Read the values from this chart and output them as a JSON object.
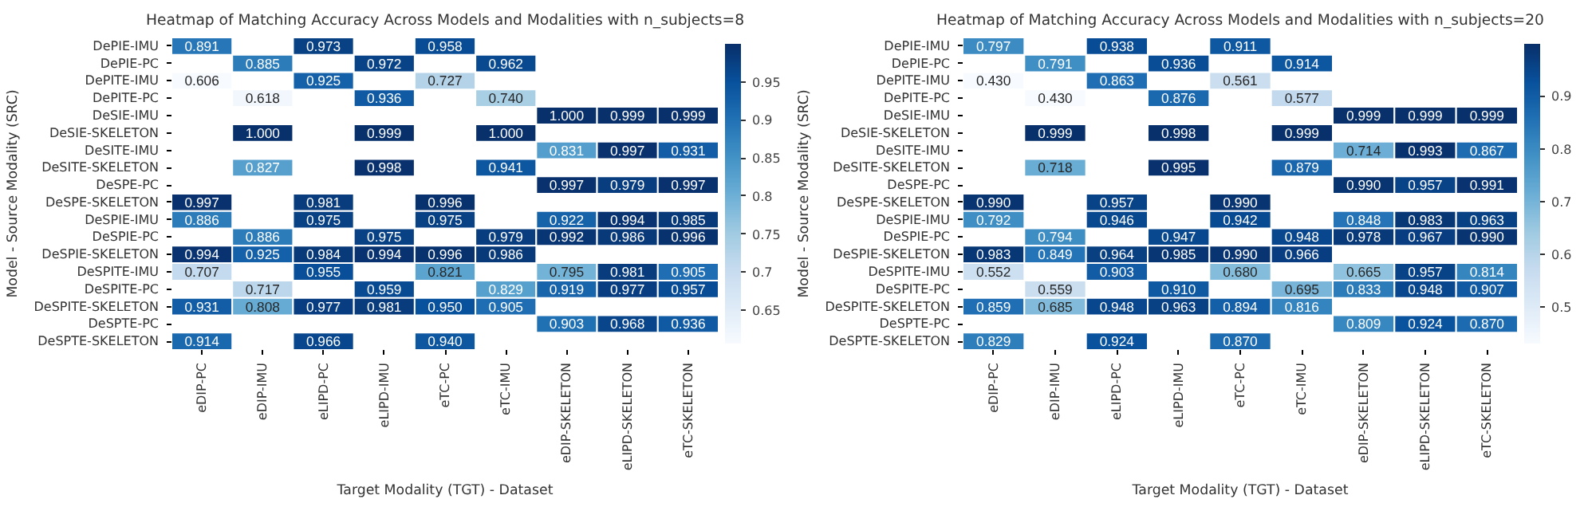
{
  "chart_data": [
    {
      "type": "heatmap",
      "title": "Heatmap of Matching Accuracy Across Models and Modalities with n_subjects=8",
      "xlabel": "Target Modality (TGT) - Dataset",
      "ylabel": "Model - Source Modality (SRC)",
      "categories": [
        "eDIP-PC",
        "eDIP-IMU",
        "eLIPD-PC",
        "eLIPD-IMU",
        "eTC-PC",
        "eTC-IMU",
        "eDIP-SKELETON",
        "eLIPD-SKELETON",
        "eTC-SKELETON"
      ],
      "y_categories": [
        "DePIE-IMU",
        "DePIE-PC",
        "DePITE-IMU",
        "DePITE-PC",
        "DeSIE-IMU",
        "DeSIE-SKELETON",
        "DeSITE-IMU",
        "DeSITE-SKELETON",
        "DeSPE-PC",
        "DeSPE-SKELETON",
        "DeSPIE-IMU",
        "DeSPIE-PC",
        "DeSPIE-SKELETON",
        "DeSPITE-IMU",
        "DeSPITE-PC",
        "DeSPITE-SKELETON",
        "DeSPTE-PC",
        "DeSPTE-SKELETON"
      ],
      "cells": [
        [
          0.891,
          null,
          0.973,
          null,
          0.958,
          null,
          null,
          null,
          null
        ],
        [
          null,
          0.885,
          null,
          0.972,
          null,
          0.962,
          null,
          null,
          null
        ],
        [
          0.606,
          null,
          0.925,
          null,
          0.727,
          null,
          null,
          null,
          null
        ],
        [
          null,
          0.618,
          null,
          0.936,
          null,
          0.74,
          null,
          null,
          null
        ],
        [
          null,
          null,
          null,
          null,
          null,
          null,
          1.0,
          0.999,
          0.999
        ],
        [
          null,
          1.0,
          null,
          0.999,
          null,
          1.0,
          null,
          null,
          null
        ],
        [
          null,
          null,
          null,
          null,
          null,
          null,
          0.831,
          0.997,
          0.931
        ],
        [
          null,
          0.827,
          null,
          0.998,
          null,
          0.941,
          null,
          null,
          null
        ],
        [
          null,
          null,
          null,
          null,
          null,
          null,
          0.997,
          0.979,
          0.997
        ],
        [
          0.997,
          null,
          0.981,
          null,
          0.996,
          null,
          null,
          null,
          null
        ],
        [
          0.886,
          null,
          0.975,
          null,
          0.975,
          null,
          0.922,
          0.994,
          0.985
        ],
        [
          null,
          0.886,
          null,
          0.975,
          null,
          0.979,
          0.992,
          0.986,
          0.996
        ],
        [
          0.994,
          0.925,
          0.984,
          0.994,
          0.996,
          0.986,
          null,
          null,
          null
        ],
        [
          0.707,
          null,
          0.955,
          null,
          0.821,
          null,
          0.795,
          0.981,
          0.905
        ],
        [
          null,
          0.717,
          null,
          0.959,
          null,
          0.829,
          0.919,
          0.977,
          0.957
        ],
        [
          0.931,
          0.808,
          0.977,
          0.981,
          0.95,
          0.905,
          null,
          null,
          null
        ],
        [
          null,
          null,
          null,
          null,
          null,
          null,
          0.903,
          0.968,
          0.936
        ],
        [
          0.914,
          null,
          0.966,
          null,
          0.94,
          null,
          null,
          null,
          null
        ]
      ],
      "cell_labels": [
        [
          "0.891",
          null,
          "0.973",
          null,
          "0.958",
          null,
          null,
          null,
          null
        ],
        [
          null,
          "0.885",
          null,
          "0.972",
          null,
          "0.962",
          null,
          null,
          null
        ],
        [
          "0.606",
          null,
          "0.925",
          null,
          "0.727",
          null,
          null,
          null,
          null
        ],
        [
          null,
          "0.618",
          null,
          "0.936",
          null,
          "0.740",
          null,
          null,
          null
        ],
        [
          null,
          null,
          null,
          null,
          null,
          null,
          "1.000",
          "0.999",
          "0.999"
        ],
        [
          null,
          "1.000",
          null,
          "0.999",
          null,
          "1.000",
          null,
          null,
          null
        ],
        [
          null,
          null,
          null,
          null,
          null,
          null,
          "0.831",
          "0.997",
          "0.931"
        ],
        [
          null,
          "0.827",
          null,
          "0.998",
          null,
          "0.941",
          null,
          null,
          null
        ],
        [
          null,
          null,
          null,
          null,
          null,
          null,
          "0.997",
          "0.979",
          "0.997"
        ],
        [
          "0.997",
          null,
          "0.981",
          null,
          "0.996",
          null,
          null,
          null,
          null
        ],
        [
          "0.886",
          null,
          "0.975",
          null,
          "0.975",
          null,
          "0.922",
          "0.994",
          "0.985"
        ],
        [
          null,
          "0.886",
          null,
          "0.975",
          null,
          "0.979",
          "0.992",
          "0.986",
          "0.996"
        ],
        [
          "0.994",
          "0.925",
          "0.984",
          "0.994",
          "0.996",
          "0.986",
          null,
          null,
          null
        ],
        [
          "0.707",
          null,
          "0.955",
          null,
          "0.821",
          null,
          "0.795",
          "0.981",
          "0.905"
        ],
        [
          null,
          "0.717",
          null,
          "0.959",
          null,
          "0.829",
          "0.919",
          "0.977",
          "0.957"
        ],
        [
          "0.931",
          "0.808",
          "0.977",
          "0.981",
          "0.950",
          "0.905",
          null,
          null,
          null
        ],
        [
          null,
          null,
          null,
          null,
          null,
          null,
          "0.903",
          "0.968",
          "0.936"
        ],
        [
          "0.914",
          null,
          "0.966",
          null,
          "0.940",
          null,
          null,
          null,
          null
        ]
      ],
      "clim": [
        0.606,
        1.0
      ],
      "cticks": [
        0.65,
        0.7,
        0.75,
        0.8,
        0.85,
        0.9,
        0.95
      ]
    },
    {
      "type": "heatmap",
      "title": "Heatmap of Matching Accuracy Across Models and Modalities with n_subjects=20",
      "xlabel": "Target Modality (TGT) - Dataset",
      "ylabel": "Model - Source Modality (SRC)",
      "categories": [
        "eDIP-PC",
        "eDIP-IMU",
        "eLIPD-PC",
        "eLIPD-IMU",
        "eTC-PC",
        "eTC-IMU",
        "eDIP-SKELETON",
        "eLIPD-SKELETON",
        "eTC-SKELETON"
      ],
      "y_categories": [
        "DePIE-IMU",
        "DePIE-PC",
        "DePITE-IMU",
        "DePITE-PC",
        "DeSIE-IMU",
        "DeSIE-SKELETON",
        "DeSITE-IMU",
        "DeSITE-SKELETON",
        "DeSPE-PC",
        "DeSPE-SKELETON",
        "DeSPIE-IMU",
        "DeSPIE-PC",
        "DeSPIE-SKELETON",
        "DeSPITE-IMU",
        "DeSPITE-PC",
        "DeSPITE-SKELETON",
        "DeSPTE-PC",
        "DeSPTE-SKELETON"
      ],
      "cells": [
        [
          0.797,
          null,
          0.938,
          null,
          0.911,
          null,
          null,
          null,
          null
        ],
        [
          null,
          0.791,
          null,
          0.936,
          null,
          0.914,
          null,
          null,
          null
        ],
        [
          0.43,
          null,
          0.863,
          null,
          0.561,
          null,
          null,
          null,
          null
        ],
        [
          null,
          0.43,
          null,
          0.876,
          null,
          0.577,
          null,
          null,
          null
        ],
        [
          null,
          null,
          null,
          null,
          null,
          null,
          0.999,
          0.999,
          0.999
        ],
        [
          null,
          0.999,
          null,
          0.998,
          null,
          0.999,
          null,
          null,
          null
        ],
        [
          null,
          null,
          null,
          null,
          null,
          null,
          0.714,
          0.993,
          0.867
        ],
        [
          null,
          0.718,
          null,
          0.995,
          null,
          0.879,
          null,
          null,
          null
        ],
        [
          null,
          null,
          null,
          null,
          null,
          null,
          0.99,
          0.957,
          0.991
        ],
        [
          0.99,
          null,
          0.957,
          null,
          0.99,
          null,
          null,
          null,
          null
        ],
        [
          0.792,
          null,
          0.946,
          null,
          0.942,
          null,
          0.848,
          0.983,
          0.963
        ],
        [
          null,
          0.794,
          null,
          0.947,
          null,
          0.948,
          0.978,
          0.967,
          0.99
        ],
        [
          0.983,
          0.849,
          0.964,
          0.985,
          0.99,
          0.966,
          null,
          null,
          null
        ],
        [
          0.552,
          null,
          0.903,
          null,
          0.68,
          null,
          0.665,
          0.957,
          0.814
        ],
        [
          null,
          0.559,
          null,
          0.91,
          null,
          0.695,
          0.833,
          0.948,
          0.907
        ],
        [
          0.859,
          0.685,
          0.948,
          0.963,
          0.894,
          0.816,
          null,
          null,
          null
        ],
        [
          null,
          null,
          null,
          null,
          null,
          null,
          0.809,
          0.924,
          0.87
        ],
        [
          0.829,
          null,
          0.924,
          null,
          0.87,
          null,
          null,
          null,
          null
        ]
      ],
      "cell_labels": [
        [
          "0.797",
          null,
          "0.938",
          null,
          "0.911",
          null,
          null,
          null,
          null
        ],
        [
          null,
          "0.791",
          null,
          "0.936",
          null,
          "0.914",
          null,
          null,
          null
        ],
        [
          "0.430",
          null,
          "0.863",
          null,
          "0.561",
          null,
          null,
          null,
          null
        ],
        [
          null,
          "0.430",
          null,
          "0.876",
          null,
          "0.577",
          null,
          null,
          null
        ],
        [
          null,
          null,
          null,
          null,
          null,
          null,
          "0.999",
          "0.999",
          "0.999"
        ],
        [
          null,
          "0.999",
          null,
          "0.998",
          null,
          "0.999",
          null,
          null,
          null
        ],
        [
          null,
          null,
          null,
          null,
          null,
          null,
          "0.714",
          "0.993",
          "0.867"
        ],
        [
          null,
          "0.718",
          null,
          "0.995",
          null,
          "0.879",
          null,
          null,
          null
        ],
        [
          null,
          null,
          null,
          null,
          null,
          null,
          "0.990",
          "0.957",
          "0.991"
        ],
        [
          "0.990",
          null,
          "0.957",
          null,
          "0.990",
          null,
          null,
          null,
          null
        ],
        [
          "0.792",
          null,
          "0.946",
          null,
          "0.942",
          null,
          "0.848",
          "0.983",
          "0.963"
        ],
        [
          null,
          "0.794",
          null,
          "0.947",
          null,
          "0.948",
          "0.978",
          "0.967",
          "0.990"
        ],
        [
          "0.983",
          "0.849",
          "0.964",
          "0.985",
          "0.990",
          "0.966",
          null,
          null,
          null
        ],
        [
          "0.552",
          null,
          "0.903",
          null,
          "0.680",
          null,
          "0.665",
          "0.957",
          "0.814"
        ],
        [
          null,
          "0.559",
          null,
          "0.910",
          null,
          "0.695",
          "0.833",
          "0.948",
          "0.907"
        ],
        [
          "0.859",
          "0.685",
          "0.948",
          "0.963",
          "0.894",
          "0.816",
          null,
          null,
          null
        ],
        [
          null,
          null,
          null,
          null,
          null,
          null,
          "0.809",
          "0.924",
          "0.870"
        ],
        [
          "0.829",
          null,
          "0.924",
          null,
          "0.870",
          null,
          null,
          null,
          null
        ]
      ],
      "clim": [
        0.43,
        0.999
      ],
      "cticks": [
        0.5,
        0.6,
        0.7,
        0.8,
        0.9
      ]
    }
  ]
}
